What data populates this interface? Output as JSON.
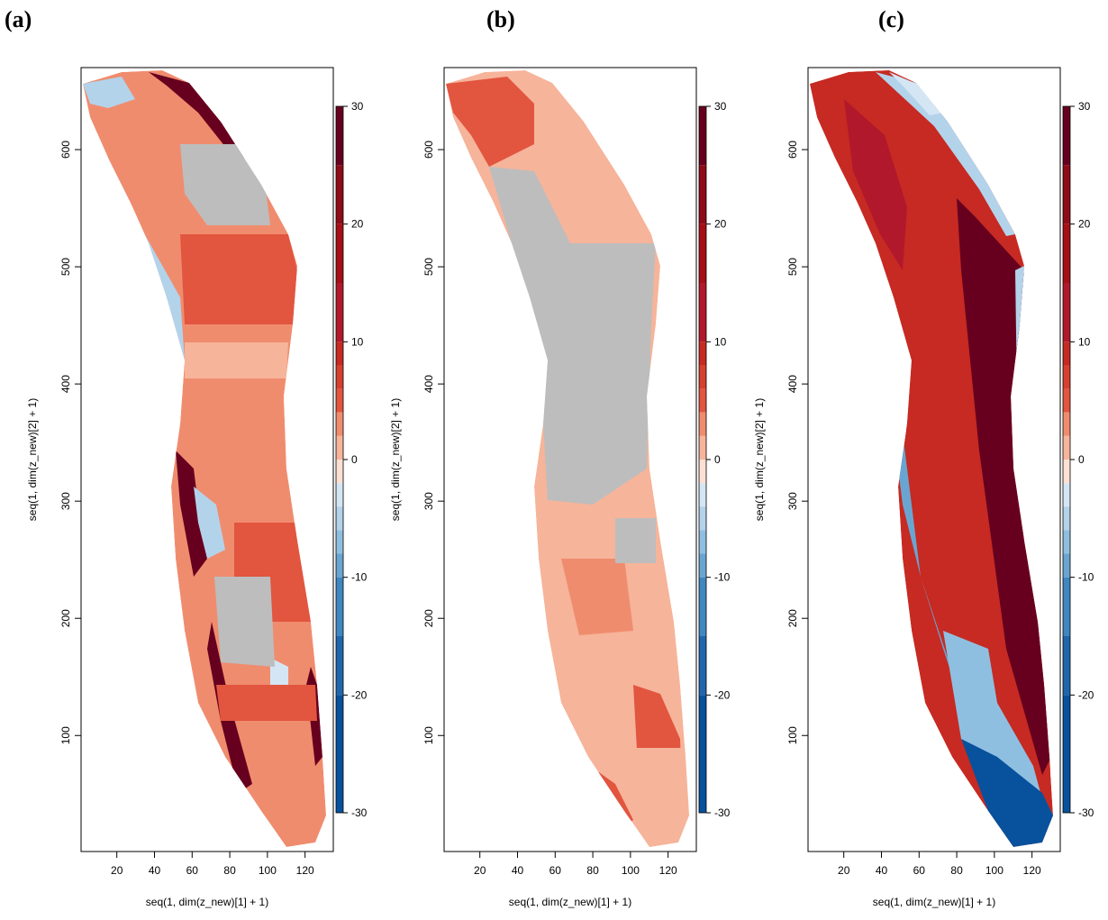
{
  "figure": {
    "panel_labels": [
      "(a)",
      "(b)",
      "(c)"
    ],
    "xlabel": "seq(1, dim(z_new)[1] + 1)",
    "ylabel": "seq(1, dim(z_new)[2] + 1)",
    "x_ticks": [
      20,
      40,
      60,
      80,
      100,
      120
    ],
    "y_ticks": [
      100,
      200,
      300,
      400,
      500,
      600
    ],
    "colorbar_ticks": [
      30,
      20,
      10,
      0,
      -10,
      -20,
      -30
    ]
  },
  "chart_data": [
    {
      "type": "heatmap",
      "panel": "(a)",
      "xlabel": "seq(1, dim(z_new)[1] + 1)",
      "ylabel": "seq(1, dim(z_new)[2] + 1)",
      "xlim": [
        1,
        135
      ],
      "ylim": [
        1,
        670
      ],
      "colorbar": {
        "min": -30,
        "max": 30,
        "ticks": [
          30,
          20,
          10,
          0,
          -10,
          -20,
          -30
        ]
      },
      "dominant_value": 2,
      "no_data_color": "#bdbdbd"
    },
    {
      "type": "heatmap",
      "panel": "(b)",
      "xlabel": "seq(1, dim(z_new)[1] + 1)",
      "ylabel": "seq(1, dim(z_new)[2] + 1)",
      "xlim": [
        1,
        135
      ],
      "ylim": [
        1,
        670
      ],
      "colorbar": {
        "min": -30,
        "max": 30,
        "ticks": [
          30,
          20,
          10,
          0,
          -10,
          -20,
          -30
        ]
      },
      "dominant_value": 1,
      "no_data_color": "#bdbdbd"
    },
    {
      "type": "heatmap",
      "panel": "(c)",
      "xlabel": "seq(1, dim(z_new)[1] + 1)",
      "ylabel": "seq(1, dim(z_new)[2] + 1)",
      "xlim": [
        1,
        135
      ],
      "ylim": [
        1,
        670
      ],
      "colorbar": {
        "min": -30,
        "max": 30,
        "ticks": [
          30,
          20,
          10,
          0,
          -10,
          -20,
          -30
        ]
      },
      "dominant_value": 8,
      "no_data_color": "#bdbdbd"
    }
  ],
  "colorscale": {
    "levels": [
      {
        "from": 25,
        "to": 30,
        "color": "#67001f"
      },
      {
        "from": 20,
        "to": 25,
        "color": "#8e0b17"
      },
      {
        "from": 15,
        "to": 20,
        "color": "#a50f15"
      },
      {
        "from": 10,
        "to": 15,
        "color": "#b2182b"
      },
      {
        "from": 8,
        "to": 10,
        "color": "#c62a22"
      },
      {
        "from": 6,
        "to": 8,
        "color": "#d6402f"
      },
      {
        "from": 4,
        "to": 6,
        "color": "#e2553f"
      },
      {
        "from": 2,
        "to": 4,
        "color": "#f08c6e"
      },
      {
        "from": 0,
        "to": 2,
        "color": "#f6b49a"
      },
      {
        "from": -2,
        "to": 0,
        "color": "#fbe0d3"
      },
      {
        "from": -4,
        "to": -2,
        "color": "#d4e6f4"
      },
      {
        "from": -6,
        "to": -4,
        "color": "#b3d3ea"
      },
      {
        "from": -8,
        "to": -6,
        "color": "#8fbfe0"
      },
      {
        "from": -10,
        "to": -8,
        "color": "#6aa5d2"
      },
      {
        "from": -15,
        "to": -10,
        "color": "#3f87c1"
      },
      {
        "from": -20,
        "to": -15,
        "color": "#2166ac"
      },
      {
        "from": -30,
        "to": -20,
        "color": "#08519c"
      }
    ]
  }
}
